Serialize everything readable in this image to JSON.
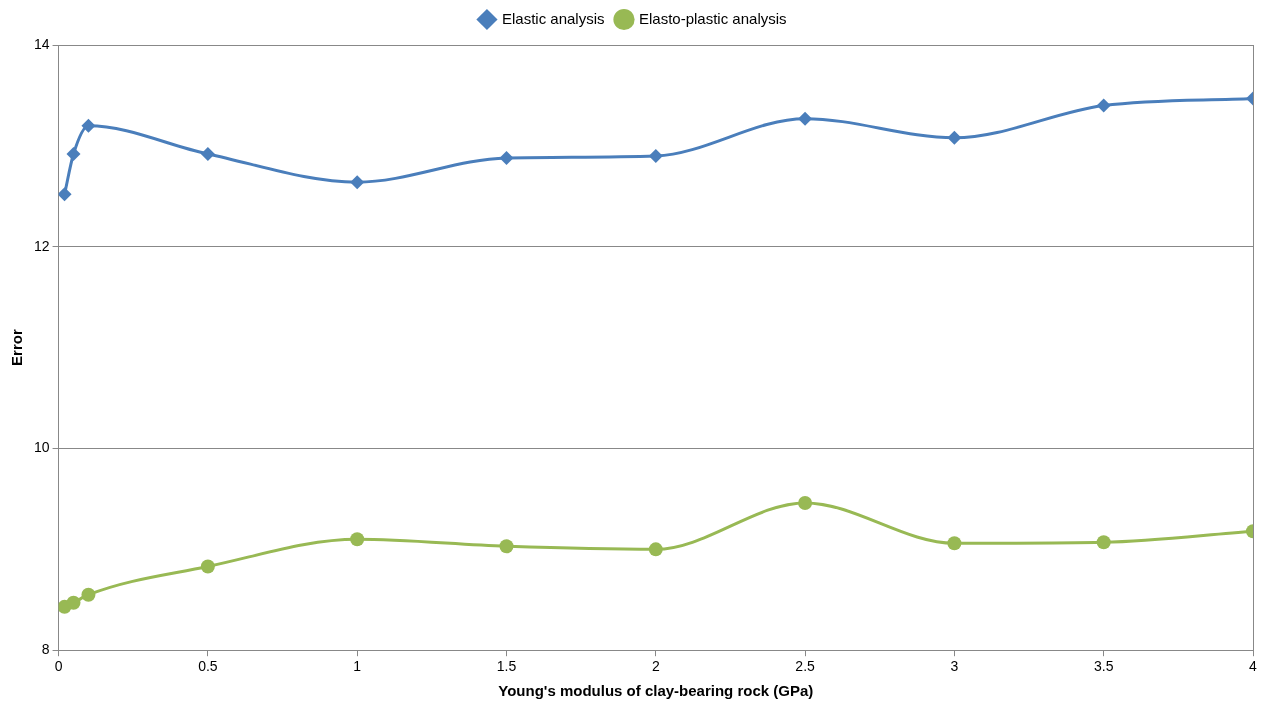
{
  "chart_data": {
    "type": "line",
    "xlabel": "Young's modulus of clay-bearing rock (GPa)",
    "ylabel": "Error",
    "x": [
      0.02,
      0.05,
      0.1,
      0.5,
      1,
      1.5,
      2,
      2.5,
      3,
      3.5,
      4
    ],
    "series": [
      {
        "name": "Elastic analysis",
        "color": "#4a7ebb",
        "marker": "diamond",
        "values": [
          12.52,
          12.92,
          13.2,
          12.92,
          12.64,
          12.88,
          12.9,
          13.27,
          13.08,
          13.4,
          13.47
        ]
      },
      {
        "name": "Elasto-plastic analysis",
        "color": "#98b954",
        "marker": "circle",
        "values": [
          8.43,
          8.47,
          8.55,
          8.83,
          9.1,
          9.03,
          9.0,
          9.46,
          9.06,
          9.07,
          9.18
        ]
      }
    ],
    "xlim": [
      0,
      4
    ],
    "xticks": [
      0,
      0.5,
      1,
      1.5,
      2,
      2.5,
      3,
      3.5,
      4
    ],
    "ylim": [
      8,
      14
    ],
    "yticks": [
      8,
      10,
      12,
      14
    ],
    "grid": "y",
    "legend": "top",
    "line_style": "solid"
  }
}
